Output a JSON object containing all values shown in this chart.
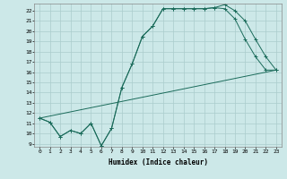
{
  "xlabel": "Humidex (Indice chaleur)",
  "bg_color": "#cce8e8",
  "grid_color": "#aacccc",
  "line_color": "#1a6b5a",
  "xlim": [
    -0.5,
    23.5
  ],
  "ylim": [
    8.7,
    22.7
  ],
  "xticks": [
    0,
    1,
    2,
    3,
    4,
    5,
    6,
    7,
    8,
    9,
    10,
    11,
    12,
    13,
    14,
    15,
    16,
    17,
    18,
    19,
    20,
    21,
    22,
    23
  ],
  "yticks": [
    9,
    10,
    11,
    12,
    13,
    14,
    15,
    16,
    17,
    18,
    19,
    20,
    21,
    22
  ],
  "line1_x": [
    0,
    1,
    2,
    3,
    4,
    5,
    6,
    7,
    8,
    9,
    10,
    11,
    12,
    13,
    14,
    15,
    16,
    17,
    18,
    19,
    20,
    21,
    22,
    23
  ],
  "line1_y": [
    11.5,
    11.1,
    9.7,
    10.3,
    10.0,
    11.0,
    8.8,
    10.5,
    14.5,
    16.8,
    19.5,
    20.5,
    22.2,
    22.2,
    22.2,
    22.2,
    22.2,
    22.3,
    22.2,
    21.2,
    19.2,
    17.5,
    16.2,
    16.2
  ],
  "line2_x": [
    0,
    1,
    2,
    3,
    4,
    5,
    6,
    7,
    8,
    9,
    10,
    11,
    12,
    13,
    14,
    15,
    16,
    17,
    18,
    19,
    20,
    21,
    22,
    23
  ],
  "line2_y": [
    11.5,
    11.1,
    9.7,
    10.3,
    10.0,
    11.0,
    8.8,
    10.5,
    14.5,
    16.8,
    19.5,
    20.5,
    22.2,
    22.2,
    22.2,
    22.2,
    22.2,
    22.3,
    22.6,
    22.0,
    21.0,
    19.2,
    17.5,
    16.2
  ],
  "line3_x": [
    0,
    23
  ],
  "line3_y": [
    11.5,
    16.2
  ],
  "xlabel_fontsize": 5.5,
  "tick_fontsize": 4.5
}
